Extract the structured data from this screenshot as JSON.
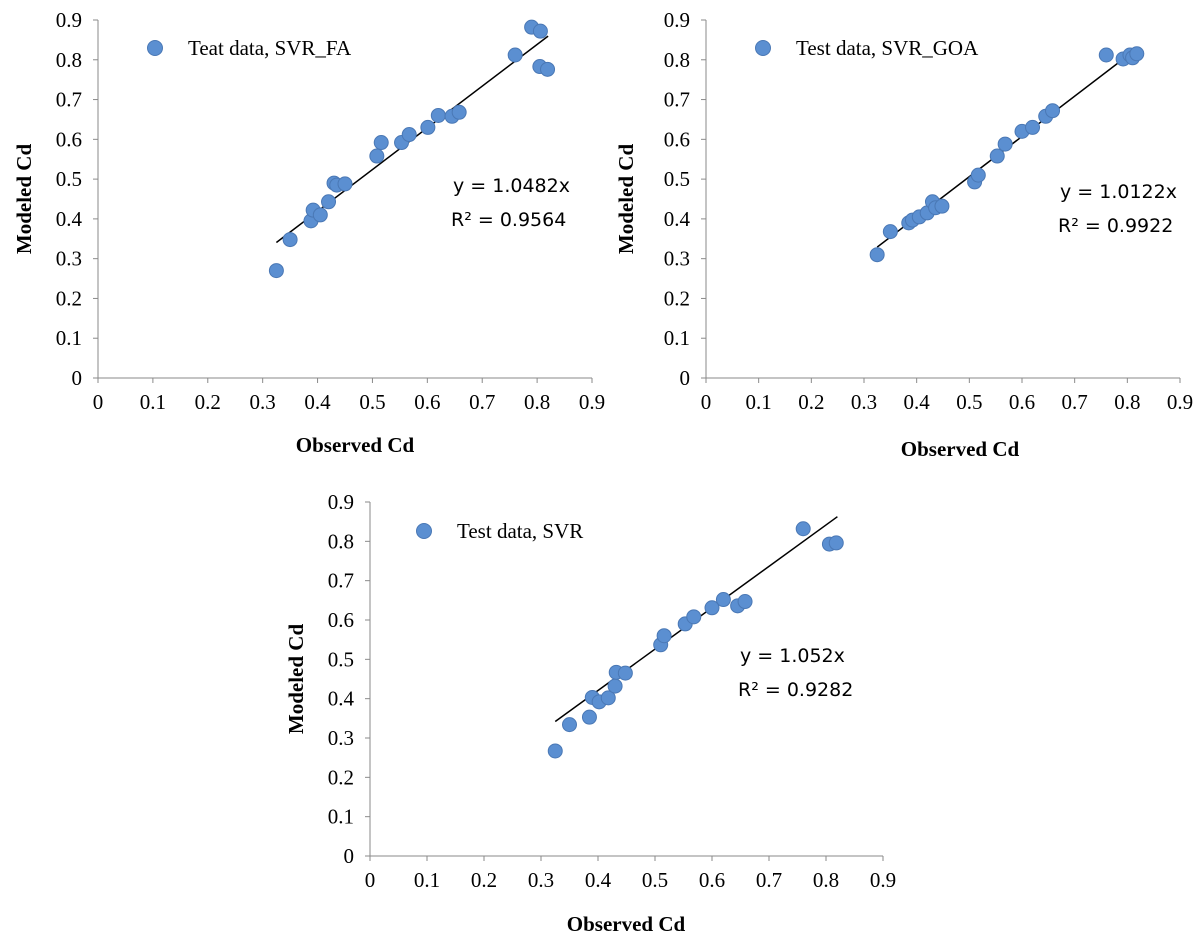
{
  "chart_data": [
    {
      "type": "scatter",
      "xlabel": "Observed Cd",
      "ylabel": "Modeled Cd",
      "xlim": [
        0,
        0.9
      ],
      "ylim": [
        0,
        0.9
      ],
      "x_ticks": [
        "0",
        "0.1",
        "0.2",
        "0.3",
        "0.4",
        "0.5",
        "0.6",
        "0.7",
        "0.8",
        "0.9"
      ],
      "y_ticks": [
        "0",
        "0.1",
        "0.2",
        "0.3",
        "0.4",
        "0.5",
        "0.6",
        "0.7",
        "0.8",
        "0.9"
      ],
      "grid": false,
      "legend_position": "top-left",
      "point_color": "#5B8FD1",
      "trendline": {
        "slope": 1.0482,
        "x_range": [
          0.325,
          0.82
        ],
        "equation": "y = 1.0482x",
        "r2": "R² = 0.9564"
      },
      "series": [
        {
          "name": "Teat data, SVR_FA",
          "points": [
            [
              0.325,
              0.27
            ],
            [
              0.35,
              0.348
            ],
            [
              0.388,
              0.395
            ],
            [
              0.392,
              0.422
            ],
            [
              0.405,
              0.41
            ],
            [
              0.42,
              0.443
            ],
            [
              0.43,
              0.49
            ],
            [
              0.435,
              0.485
            ],
            [
              0.45,
              0.488
            ],
            [
              0.508,
              0.558
            ],
            [
              0.516,
              0.592
            ],
            [
              0.553,
              0.592
            ],
            [
              0.567,
              0.612
            ],
            [
              0.601,
              0.63
            ],
            [
              0.62,
              0.66
            ],
            [
              0.645,
              0.658
            ],
            [
              0.658,
              0.668
            ],
            [
              0.76,
              0.812
            ],
            [
              0.79,
              0.882
            ],
            [
              0.806,
              0.872
            ],
            [
              0.805,
              0.783
            ],
            [
              0.819,
              0.776
            ]
          ]
        }
      ]
    },
    {
      "type": "scatter",
      "xlabel": "Observed Cd",
      "ylabel": "Modeled Cd",
      "xlim": [
        0,
        0.9
      ],
      "ylim": [
        0,
        0.9
      ],
      "x_ticks": [
        "0",
        "0.1",
        "0.2",
        "0.3",
        "0.4",
        "0.5",
        "0.6",
        "0.7",
        "0.8",
        "0.9"
      ],
      "y_ticks": [
        "0",
        "0.1",
        "0.2",
        "0.3",
        "0.4",
        "0.5",
        "0.6",
        "0.7",
        "0.8",
        "0.9"
      ],
      "grid": false,
      "legend_position": "top-left",
      "point_color": "#5B8FD1",
      "trendline": {
        "slope": 1.0122,
        "x_range": [
          0.325,
          0.82
        ],
        "equation": "y = 1.0122x",
        "r2": "R² = 0.9922"
      },
      "series": [
        {
          "name": "Test data, SVR_GOA",
          "points": [
            [
              0.325,
              0.31
            ],
            [
              0.35,
              0.368
            ],
            [
              0.385,
              0.39
            ],
            [
              0.392,
              0.397
            ],
            [
              0.405,
              0.405
            ],
            [
              0.42,
              0.415
            ],
            [
              0.43,
              0.443
            ],
            [
              0.436,
              0.428
            ],
            [
              0.448,
              0.432
            ],
            [
              0.51,
              0.493
            ],
            [
              0.517,
              0.51
            ],
            [
              0.553,
              0.558
            ],
            [
              0.568,
              0.588
            ],
            [
              0.6,
              0.62
            ],
            [
              0.62,
              0.63
            ],
            [
              0.645,
              0.658
            ],
            [
              0.658,
              0.672
            ],
            [
              0.76,
              0.812
            ],
            [
              0.792,
              0.802
            ],
            [
              0.805,
              0.812
            ],
            [
              0.81,
              0.805
            ],
            [
              0.818,
              0.815
            ]
          ]
        }
      ]
    },
    {
      "type": "scatter",
      "xlabel": "Observed Cd",
      "ylabel": "Modeled Cd",
      "xlim": [
        0,
        0.9
      ],
      "ylim": [
        0,
        0.9
      ],
      "x_ticks": [
        "0",
        "0.1",
        "0.2",
        "0.3",
        "0.4",
        "0.5",
        "0.6",
        "0.7",
        "0.8",
        "0.9"
      ],
      "y_ticks": [
        "0",
        "0.1",
        "0.2",
        "0.3",
        "0.4",
        "0.5",
        "0.6",
        "0.7",
        "0.8",
        "0.9"
      ],
      "grid": false,
      "legend_position": "top-left",
      "point_color": "#5B8FD1",
      "trendline": {
        "slope": 1.052,
        "x_range": [
          0.325,
          0.82
        ],
        "equation": "y = 1.052x",
        "r2": "R² = 0.9282"
      },
      "series": [
        {
          "name": "Test data, SVR",
          "points": [
            [
              0.325,
              0.267
            ],
            [
              0.35,
              0.334
            ],
            [
              0.385,
              0.353
            ],
            [
              0.39,
              0.403
            ],
            [
              0.402,
              0.392
            ],
            [
              0.418,
              0.402
            ],
            [
              0.43,
              0.432
            ],
            [
              0.432,
              0.467
            ],
            [
              0.448,
              0.465
            ],
            [
              0.51,
              0.537
            ],
            [
              0.516,
              0.56
            ],
            [
              0.553,
              0.59
            ],
            [
              0.568,
              0.608
            ],
            [
              0.6,
              0.631
            ],
            [
              0.62,
              0.652
            ],
            [
              0.645,
              0.636
            ],
            [
              0.658,
              0.647
            ],
            [
              0.76,
              0.832
            ],
            [
              0.806,
              0.793
            ],
            [
              0.818,
              0.796
            ]
          ]
        }
      ]
    }
  ]
}
